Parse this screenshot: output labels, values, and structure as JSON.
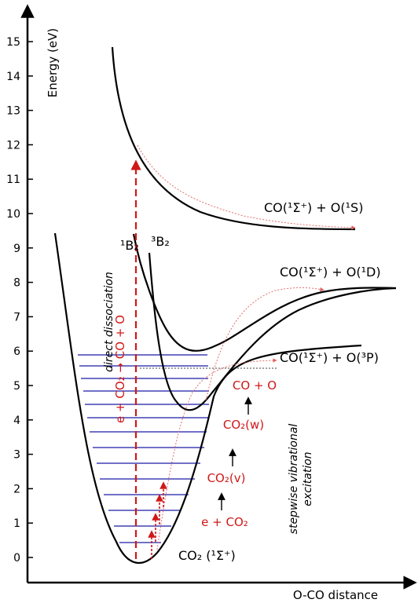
{
  "axes": {
    "y_title": "Energy (eV)",
    "x_title": "O-CO distance",
    "y_ticks": [
      "0",
      "1",
      "2",
      "3",
      "4",
      "5",
      "6",
      "7",
      "8",
      "9",
      "10",
      "11",
      "12",
      "13",
      "14",
      "15"
    ]
  },
  "states": {
    "ground": "CO₂ (¹Σ⁺)",
    "one_b2": "¹B₂",
    "three_b2": "³B₂"
  },
  "asymptotes": {
    "o1s": "CO(¹Σ⁺) + O(¹S)",
    "o1d": "CO(¹Σ⁺) + O(¹D)",
    "o3p": "CO(¹Σ⁺) + O(³P)"
  },
  "annotations": {
    "direct_reaction": "e + CO₂ → CO + O",
    "direct_label": "direct dissociation",
    "stepwise_label_1": "stepwise vibrational",
    "stepwise_label_2": "excitation",
    "step1": "e + CO₂",
    "step2": "CO₂(v)",
    "step3": "CO₂(w)",
    "step4": "CO + O"
  },
  "colors": {
    "curve": "#000000",
    "vibrational_levels": "#1a1aa6",
    "reaction_path": "#d01818",
    "dissociation_path": "#f0a0a0"
  }
}
